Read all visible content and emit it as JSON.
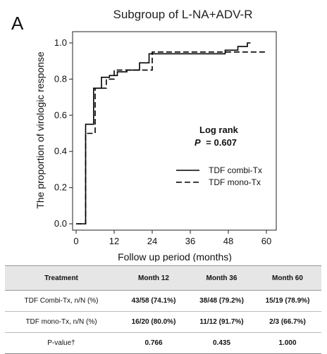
{
  "panel_letter": "A",
  "chart_data": {
    "type": "line",
    "title": "Subgroup of L-NA+ADV-R",
    "xlabel": "Follow up period (months)",
    "ylabel": "The proportion of virologic response",
    "xlim": [
      0,
      60
    ],
    "ylim": [
      0,
      1.0
    ],
    "x_ticks": [
      0,
      12,
      24,
      36,
      48,
      60
    ],
    "x_tick_labels": [
      "0",
      "12",
      "24",
      "36",
      "48",
      "60"
    ],
    "y_ticks": [
      0.0,
      0.2,
      0.4,
      0.6,
      0.8,
      1.0
    ],
    "y_tick_labels": [
      "0.0",
      "0.2",
      "0.4",
      "0.6",
      "0.8",
      "1.0"
    ],
    "grid": false,
    "legend_position": "right",
    "annotation": {
      "label": "Log rank",
      "p_label": "P",
      "p_value": "= 0.607"
    },
    "series": [
      {
        "name": "TDF combi-Tx",
        "style": "solid",
        "color": "#000000",
        "steps": [
          [
            0,
            0
          ],
          [
            3,
            0
          ],
          [
            3,
            0.55
          ],
          [
            5.5,
            0.55
          ],
          [
            5.5,
            0.75
          ],
          [
            8,
            0.75
          ],
          [
            8,
            0.81
          ],
          [
            10.5,
            0.81
          ],
          [
            10.5,
            0.82
          ],
          [
            13,
            0.82
          ],
          [
            13,
            0.84
          ],
          [
            16,
            0.84
          ],
          [
            16,
            0.85
          ],
          [
            20,
            0.85
          ],
          [
            20,
            0.89
          ],
          [
            23,
            0.89
          ],
          [
            23,
            0.94
          ],
          [
            47,
            0.94
          ],
          [
            47,
            0.96
          ],
          [
            51,
            0.96
          ],
          [
            51,
            0.98
          ],
          [
            54,
            0.98
          ],
          [
            54,
            1.0
          ],
          [
            55,
            1.0
          ]
        ]
      },
      {
        "name": "TDF mono-Tx",
        "style": "dashed",
        "color": "#000000",
        "steps": [
          [
            0,
            0
          ],
          [
            3,
            0
          ],
          [
            3,
            0.5
          ],
          [
            6,
            0.5
          ],
          [
            6,
            0.75
          ],
          [
            9.5,
            0.75
          ],
          [
            9.5,
            0.8
          ],
          [
            12,
            0.8
          ],
          [
            12,
            0.85
          ],
          [
            24,
            0.85
          ],
          [
            24,
            0.95
          ],
          [
            60,
            0.95
          ]
        ]
      }
    ]
  },
  "table": {
    "headers": [
      "Treatment",
      "Month 12",
      "Month 36",
      "Month 60"
    ],
    "rows": [
      [
        "TDF Combi-Tx, n/N (%)",
        "43/58 (74.1%)",
        "38/48 (79.2%)",
        "15/19 (78.9%)"
      ],
      [
        "TDF mono-Tx, n/N (%)",
        "16/20 (80.0%)",
        "11/12 (91.7%)",
        "2/3 (66.7%)"
      ],
      [
        "P-value†",
        "0.766",
        "0.435",
        "1.000"
      ]
    ]
  }
}
